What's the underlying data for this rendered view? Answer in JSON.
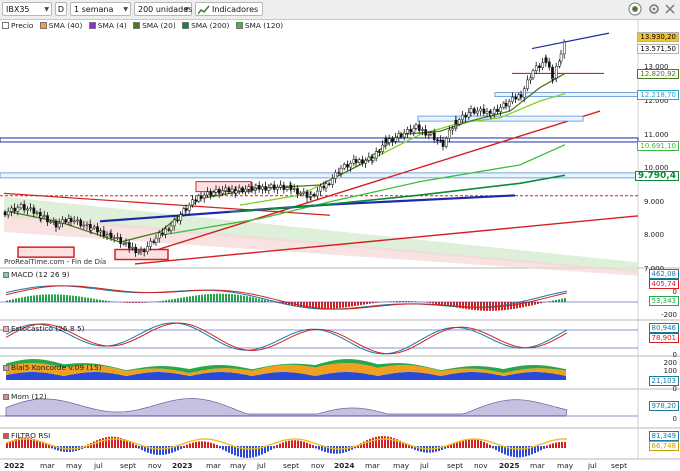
{
  "toolbar": {
    "ticker": "IBX35",
    "period_letter": "D",
    "timeframe": "1 semana",
    "units": "200 unidades",
    "indicators_label": "Indicadores"
  },
  "legend": {
    "price": "Precio",
    "items": [
      "SMA (40)",
      "SMA (4)",
      "SMA (20)",
      "SMA (200)",
      "SMA (120)"
    ]
  },
  "watermark": "ProRealTime.com - Fin de Día",
  "price_axis": {
    "ticks": [
      "13.000",
      "12.000",
      "11.000",
      "10.000",
      "9.000",
      "8.000",
      "7.000"
    ],
    "tags": [
      {
        "text": "13.930,20",
        "color": "#f1c232",
        "fg": "#000"
      },
      {
        "text": "13.571,50",
        "color": "#ffffff",
        "fg": "#000"
      },
      {
        "text": "12.820,92",
        "color": "#ffffff",
        "fg": "#4a7a1a"
      },
      {
        "text": "12.218,70",
        "color": "#ffffff",
        "fg": "#2aa6c9"
      },
      {
        "text": "10.691,10",
        "color": "#ffffff",
        "fg": "#3bbf3b"
      },
      {
        "text": "9.790,4",
        "color": "#ffffff",
        "fg": "#0a8a3a"
      }
    ]
  },
  "panels": {
    "macd": {
      "label": "MACD (12 26 9)",
      "tags": [
        "462,08",
        "405,74",
        "53,343"
      ],
      "ticks": [
        "0",
        "-200"
      ]
    },
    "stoch": {
      "label": "Estocástico (26 8 5)",
      "tags": [
        "80,946",
        "78,901"
      ],
      "ticks": [
        "0"
      ]
    },
    "koncorde": {
      "label": "Blai5 Koncorde v.09 (15)",
      "tags": [
        "21,103"
      ],
      "ticks": [
        "200",
        "100",
        "0"
      ]
    },
    "mom": {
      "label": "Mom (12)",
      "tags": [
        "978,20"
      ],
      "ticks": [
        "0"
      ]
    },
    "rsi": {
      "label": "FILTRO RSI",
      "tags": [
        "81,349",
        "66,748"
      ],
      "ticks": []
    }
  },
  "x_axis": [
    "2022",
    "mar",
    "may",
    "jul",
    "sept",
    "nov",
    "2023",
    "mar",
    "may",
    "jul",
    "sept",
    "nov",
    "2024",
    "mar",
    "may",
    "jul",
    "sept",
    "nov",
    "2025",
    "mar",
    "may",
    "jul",
    "sept"
  ],
  "colors": {
    "up": "#1a1a1a",
    "sma4": "#8a2be2",
    "sma20": "#4a7a1a",
    "sma40": "#ff9a3c",
    "sma120": "#3bbf3b",
    "sma200": "#0a8a3a",
    "accent": "#d62020"
  },
  "icons": [
    "chart-type-icon",
    "indicators-icon",
    "alert-icon",
    "add-icon",
    "settings-icon",
    "close-icon"
  ]
}
